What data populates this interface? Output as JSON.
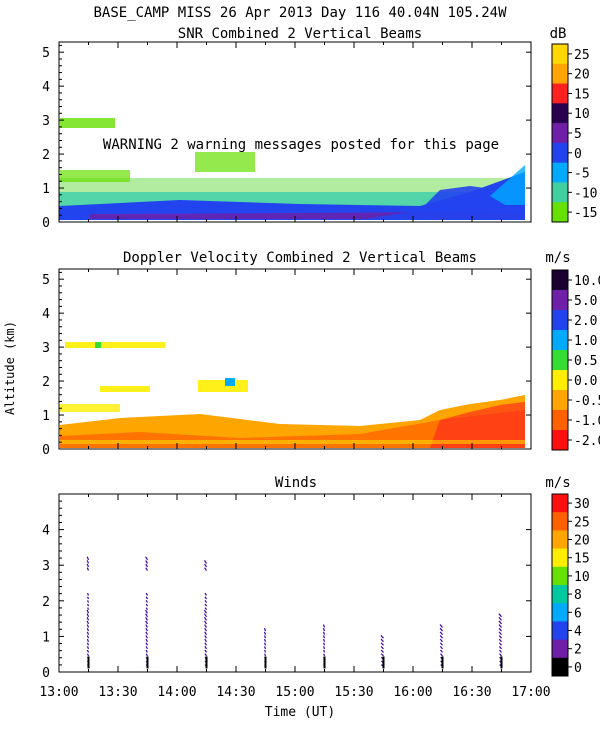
{
  "header": {
    "title": "BASE_CAMP MISS  26 Apr 2013 Day 116 40.04N 105.24W"
  },
  "chart_data": [
    {
      "type": "heatmap",
      "id": "snr",
      "title": "SNR Combined 2 Vertical Beams",
      "unit": "dB",
      "ylabel": "",
      "ylim": [
        0,
        5.3
      ],
      "yticks": [
        "0",
        "1",
        "2",
        "3",
        "4",
        "5"
      ],
      "colorbar_ticks": [
        "25",
        "20",
        "15",
        "10",
        "5",
        "0",
        "-5",
        "-10",
        "-15"
      ],
      "colorbar_colors": [
        "#ffd700",
        "#ffa500",
        "#ff2020",
        "#2a0050",
        "#6f1fa8",
        "#2244ee",
        "#00aaff",
        "#40d0a0",
        "#66e000"
      ],
      "warning": "WARNING  2 warning messages posted for this page"
    },
    {
      "type": "heatmap",
      "id": "doppler",
      "title": "Doppler Velocity Combined 2 Vertical Beams",
      "unit": "m/s",
      "ylabel": "Altitude (km)",
      "ylim": [
        0,
        5.3
      ],
      "yticks": [
        "0",
        "1",
        "2",
        "3",
        "4",
        "5"
      ],
      "colorbar_ticks": [
        "10.0",
        "5.0",
        "2.0",
        "1.0",
        "0.5",
        "0.0",
        "-0.5",
        "-1.0",
        "-2.0"
      ],
      "colorbar_colors": [
        "#1a0030",
        "#6f1fa8",
        "#2244ee",
        "#00aaff",
        "#33dd33",
        "#ffee00",
        "#ffa500",
        "#ff6000",
        "#ff1010"
      ]
    },
    {
      "type": "scatter",
      "id": "winds",
      "title": "Winds",
      "unit": "m/s",
      "xlabel": "Time (UT)",
      "ylim": [
        0,
        5
      ],
      "yticks": [
        "0",
        "1",
        "2",
        "3",
        "4"
      ],
      "xticks": [
        "13:00",
        "13:30",
        "14:00",
        "14:30",
        "15:00",
        "15:30",
        "16:00",
        "16:30",
        "17:00"
      ],
      "colorbar_ticks": [
        "30",
        "25",
        "20",
        "15",
        "10",
        "8",
        "6",
        "4",
        "2",
        "0"
      ],
      "colorbar_colors": [
        "#ff1010",
        "#ff6000",
        "#ffa500",
        "#ffee00",
        "#66e000",
        "#00c8a0",
        "#00aaff",
        "#2244ee",
        "#6f1fa8",
        "#000000"
      ],
      "profile_times_hr": [
        13.25,
        13.75,
        14.25,
        14.75,
        15.25,
        15.75,
        16.25,
        16.75
      ]
    }
  ]
}
